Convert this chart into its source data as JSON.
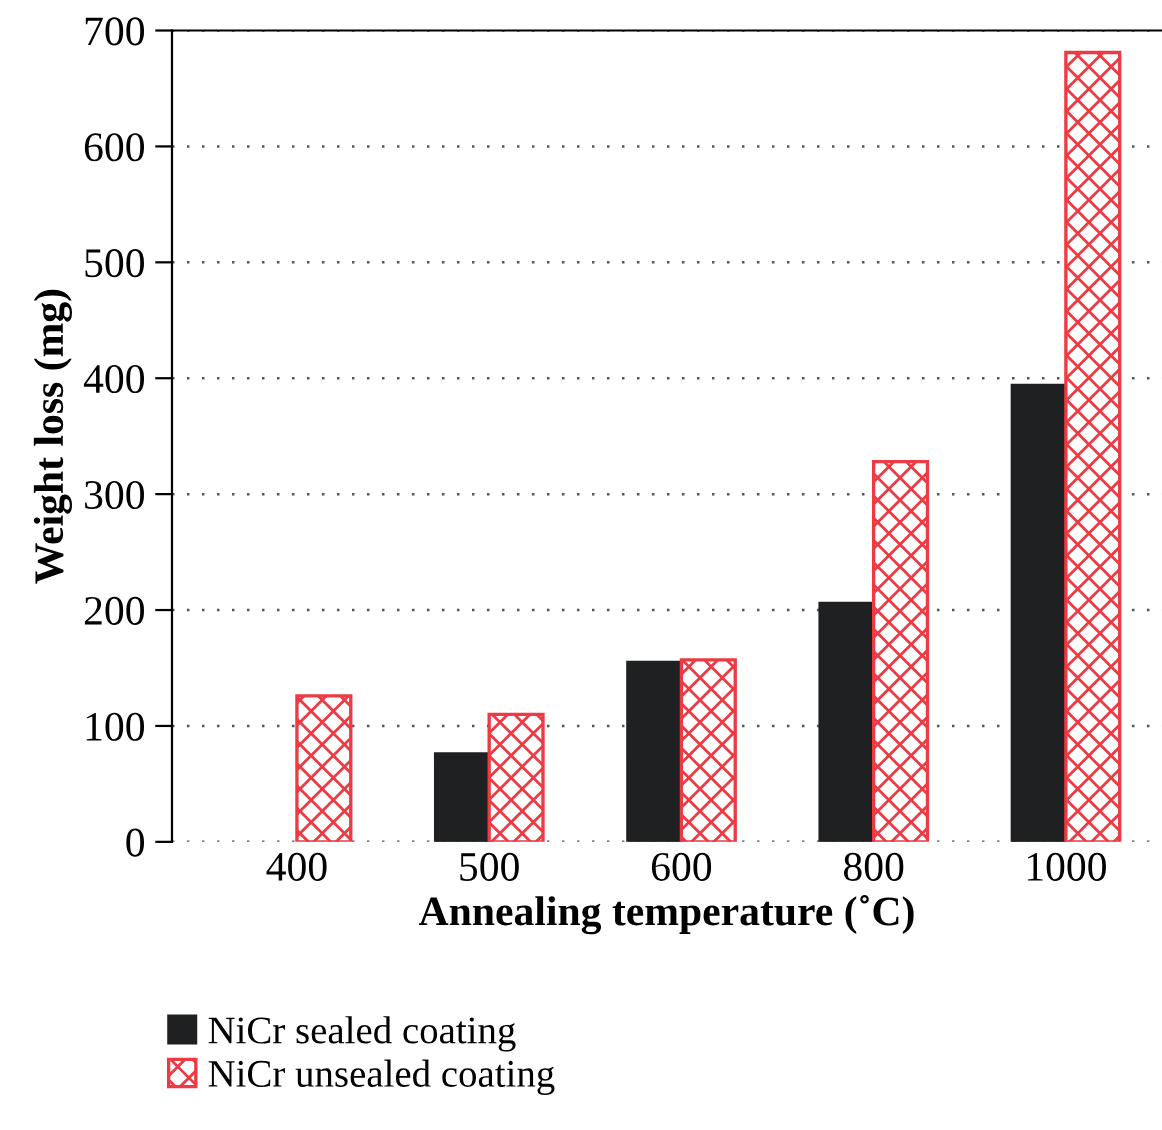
{
  "chart_data": {
    "type": "bar",
    "xlabel": "Annealing temperature (˚C)",
    "ylabel": "Weight loss (mg)",
    "categories": [
      "400",
      "500",
      "600",
      "800",
      "1000"
    ],
    "series": [
      {
        "name": "NiCr sealed coating",
        "color": "#1f2021",
        "values": [
          null,
          76,
          155,
          206,
          394
        ]
      },
      {
        "name": "NiCr unsealed coating",
        "color": "#ee3a43",
        "values": [
          126,
          110,
          157,
          328,
          681
        ]
      }
    ],
    "ylim": [
      0,
      700
    ],
    "yticks": [
      0,
      100,
      200,
      300,
      400,
      500,
      600,
      700
    ],
    "grid": "y",
    "legend": "bottom"
  }
}
